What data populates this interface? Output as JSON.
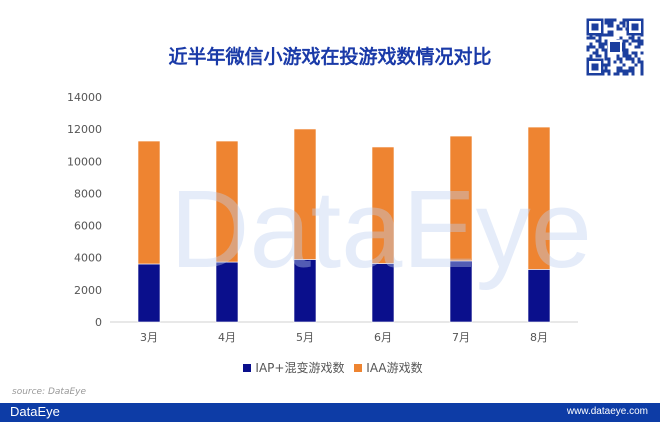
{
  "watermark": "DataEye",
  "chart_data": {
    "type": "bar",
    "stacked": true,
    "title": "近半年微信小游戏在投游戏数情况对比",
    "categories": [
      "3月",
      "4月",
      "5月",
      "6月",
      "7月",
      "8月"
    ],
    "series": [
      {
        "name": "IAP+混变游戏数",
        "color": "#0a0f8c",
        "values": [
          3610,
          3730,
          3890,
          3640,
          3800,
          3270
        ]
      },
      {
        "name": "IAA游戏数",
        "color": "#ee8431",
        "values": [
          7650,
          7530,
          8120,
          7250,
          7770,
          8860
        ]
      }
    ],
    "ylim": [
      0,
      14000
    ],
    "yticks": [
      0,
      2000,
      4000,
      6000,
      8000,
      10000,
      12000,
      14000
    ],
    "xlabel": "",
    "ylabel": "",
    "grid": false,
    "legend": "bottom"
  },
  "source": "source: DataEye",
  "footer": {
    "logo": "DataEye",
    "url": "www.dataeye.com"
  }
}
